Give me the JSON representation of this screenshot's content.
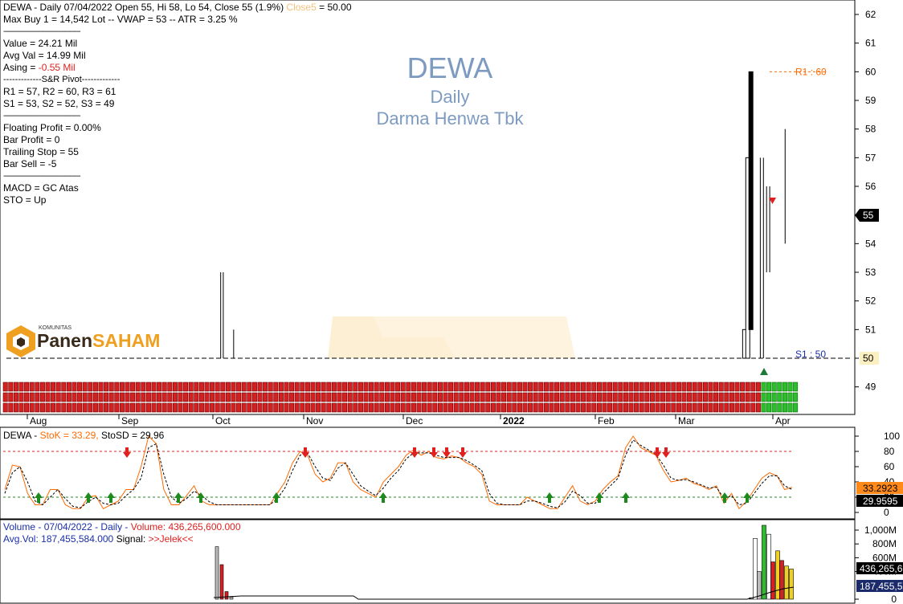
{
  "header": {
    "line1_prefix": "DEWA - Daily 07/04/2022 Open 55, Hi 58, Lo 54, Close 55 (1.9%)",
    "line1_close_label": "Close5",
    "line1_close_value": " = 50.00",
    "line2": "Max Buy 1 = 14,542 Lot  --  VWAP = 53  --  ATR = 3.25 %",
    "sep1": "-----------------------------------------",
    "value": "Value = 24.21 Mil",
    "avg_val": "Avg Val = 14.99 Mil",
    "asing_label": "Asing = ",
    "asing_value": "-0.55 Mil",
    "pivot_title": "-------------S&R Pivot-------------",
    "r_levels": "R1 = 57, R2 = 60, R3 = 61",
    "s_levels": "S1 = 53, S2 = 52, S3 = 49",
    "sep2": "-----------------------------------------",
    "floating_profit": "Floating Profit = 0.00%",
    "bar_profit": "Bar Profit = 0",
    "trailing_stop": "Trailing Stop = 55",
    "bar_sell": "Bar Sell = -5",
    "sep3": "-----------------------------------------",
    "macd": "MACD =  GC Atas",
    "sto": "STO  =  Up"
  },
  "watermark": {
    "ticker": "DEWA",
    "period": "Daily",
    "company": "Darma Henwa Tbk"
  },
  "logo": {
    "small": "KOMUNITAS",
    "part1": "Panen",
    "part2": "SAHAM"
  },
  "levels": {
    "r1_label": "R1 : 60",
    "s1_label": "S1 : 50",
    "last_price_badge": "55",
    "s1_badge": "50"
  },
  "stoch_header": {
    "prefix": "DEWA - ",
    "stok": "StoK = 33.29,",
    "stosd": " StoSD = 29.96",
    "badge_k": "33.2923",
    "badge_d": "29.9595"
  },
  "volume_header": {
    "line1_prefix": "Volume - 07/04/2022 - Daily - ",
    "line1_volume": "Volume: 436,265,600.000",
    "avg_vol": "Avg.Vol: 187,455,584.000",
    "signal_label": "  Signal: ",
    "signal_value": ">>Jelek<<",
    "badge_vol": "436,265,6",
    "badge_avg": "187,455,5"
  },
  "colors": {
    "up": "#00b000",
    "down": "#e0201f",
    "stoch": "#ff6a00",
    "watermark": "#7d9bc1",
    "cloud": "#fdebc8"
  },
  "chart_data": [
    {
      "type": "ohlc",
      "title": "DEWA Daily",
      "x_ticks": [
        "Aug",
        "Sep",
        "Oct",
        "Nov",
        "Dec",
        "2022",
        "Feb",
        "Mar",
        "Apr"
      ],
      "y_ticks": [
        49,
        50,
        51,
        52,
        53,
        54,
        55,
        56,
        57,
        58,
        59,
        60,
        61,
        62
      ],
      "ylim": [
        48.6,
        62.5
      ],
      "resistance": {
        "label": "R1 : 60",
        "value": 60
      },
      "support": {
        "label": "S1 : 50",
        "value": 50
      },
      "bars": [
        {
          "date": "2021-07-29",
          "open": 50,
          "high": 50,
          "low": 50,
          "close": 50
        },
        {
          "date": "2021-09-30",
          "open": 50,
          "high": 53,
          "low": 50,
          "close": 50
        },
        {
          "date": "2021-10-01",
          "open": 50,
          "high": 53,
          "low": 50,
          "close": 50
        },
        {
          "date": "2021-10-05",
          "open": 50,
          "high": 51,
          "low": 50,
          "close": 50
        },
        {
          "date": "2022-03-23",
          "open": 50,
          "high": 51,
          "low": 50,
          "close": 51
        },
        {
          "date": "2022-03-24",
          "open": 50,
          "high": 57,
          "low": 50,
          "close": 57
        },
        {
          "date": "2022-03-25",
          "open": 60,
          "high": 60,
          "low": 51,
          "close": 51
        },
        {
          "date": "2022-03-28",
          "open": 54,
          "high": 57,
          "low": 50,
          "close": 54
        },
        {
          "date": "2022-03-29",
          "open": 54,
          "high": 57,
          "low": 50,
          "close": 54
        },
        {
          "date": "2022-03-30",
          "open": 54,
          "high": 56,
          "low": 53,
          "close": 54
        },
        {
          "date": "2022-03-31",
          "open": 54,
          "high": 56,
          "low": 53,
          "close": 54
        },
        {
          "date": "2022-04-07",
          "open": 55,
          "high": 58,
          "low": 54,
          "close": 55
        }
      ]
    },
    {
      "type": "line",
      "title": "Stochastic",
      "y_ticks": [
        0,
        20,
        40,
        60,
        80,
        100
      ],
      "ylim": [
        0,
        100
      ],
      "overbought": 80,
      "oversold": 20,
      "series": [
        {
          "name": "StoK",
          "values": [
            30,
            62,
            60,
            25,
            10,
            10,
            30,
            30,
            10,
            5,
            5,
            20,
            22,
            5,
            10,
            15,
            30,
            30,
            60,
            100,
            90,
            30,
            10,
            10,
            22,
            35,
            15,
            10,
            10,
            10,
            10,
            10,
            10,
            10,
            10,
            10,
            25,
            40,
            65,
            80,
            75,
            50,
            40,
            45,
            65,
            65,
            40,
            30,
            25,
            20,
            40,
            50,
            60,
            75,
            82,
            75,
            80,
            72,
            70,
            74,
            72,
            65,
            60,
            50,
            15,
            10,
            10,
            10,
            10,
            20,
            15,
            10,
            5,
            5,
            20,
            35,
            15,
            10,
            15,
            30,
            40,
            48,
            85,
            100,
            85,
            80,
            75,
            55,
            40,
            42,
            45,
            38,
            35,
            30,
            35,
            12,
            25,
            5,
            15,
            30,
            45,
            52,
            48,
            30,
            33
          ]
        },
        {
          "name": "StoSD",
          "values": [
            25,
            52,
            60,
            40,
            15,
            10,
            20,
            30,
            18,
            8,
            6,
            14,
            20,
            12,
            10,
            12,
            22,
            30,
            45,
            85,
            90,
            50,
            20,
            12,
            18,
            28,
            22,
            14,
            10,
            10,
            10,
            10,
            10,
            10,
            10,
            10,
            18,
            32,
            55,
            75,
            78,
            60,
            45,
            42,
            58,
            65,
            50,
            35,
            28,
            22,
            32,
            45,
            55,
            70,
            78,
            78,
            78,
            75,
            72,
            72,
            72,
            68,
            62,
            55,
            25,
            12,
            10,
            10,
            10,
            15,
            15,
            12,
            8,
            6,
            14,
            28,
            22,
            12,
            12,
            25,
            35,
            45,
            75,
            95,
            88,
            82,
            76,
            62,
            45,
            42,
            43,
            40,
            36,
            32,
            33,
            18,
            22,
            10,
            12,
            25,
            38,
            48,
            48,
            35,
            30
          ]
        }
      ]
    },
    {
      "type": "bar",
      "title": "Volume",
      "y_ticks": [
        "0",
        "200M",
        "400M",
        "600M",
        "800M",
        "1,000M"
      ],
      "ylim": [
        0,
        1100000000
      ],
      "series": [
        {
          "name": "Volume",
          "values": [
            5000000,
            5000000,
            760000000,
            500000000,
            110000000,
            30000000,
            20000000,
            880000000,
            960000000,
            1130000000,
            940000000,
            540000000,
            700000000,
            560000000,
            480000000,
            300000000,
            436265600
          ]
        },
        {
          "name": "Avg.Vol",
          "values": [
            80000000,
            80000000,
            80000000,
            80000000,
            80000000,
            70000000,
            60000000,
            90000000,
            120000000,
            140000000,
            160000000,
            170000000,
            175000000,
            180000000,
            183000000,
            185000000,
            187455584
          ]
        }
      ]
    }
  ]
}
